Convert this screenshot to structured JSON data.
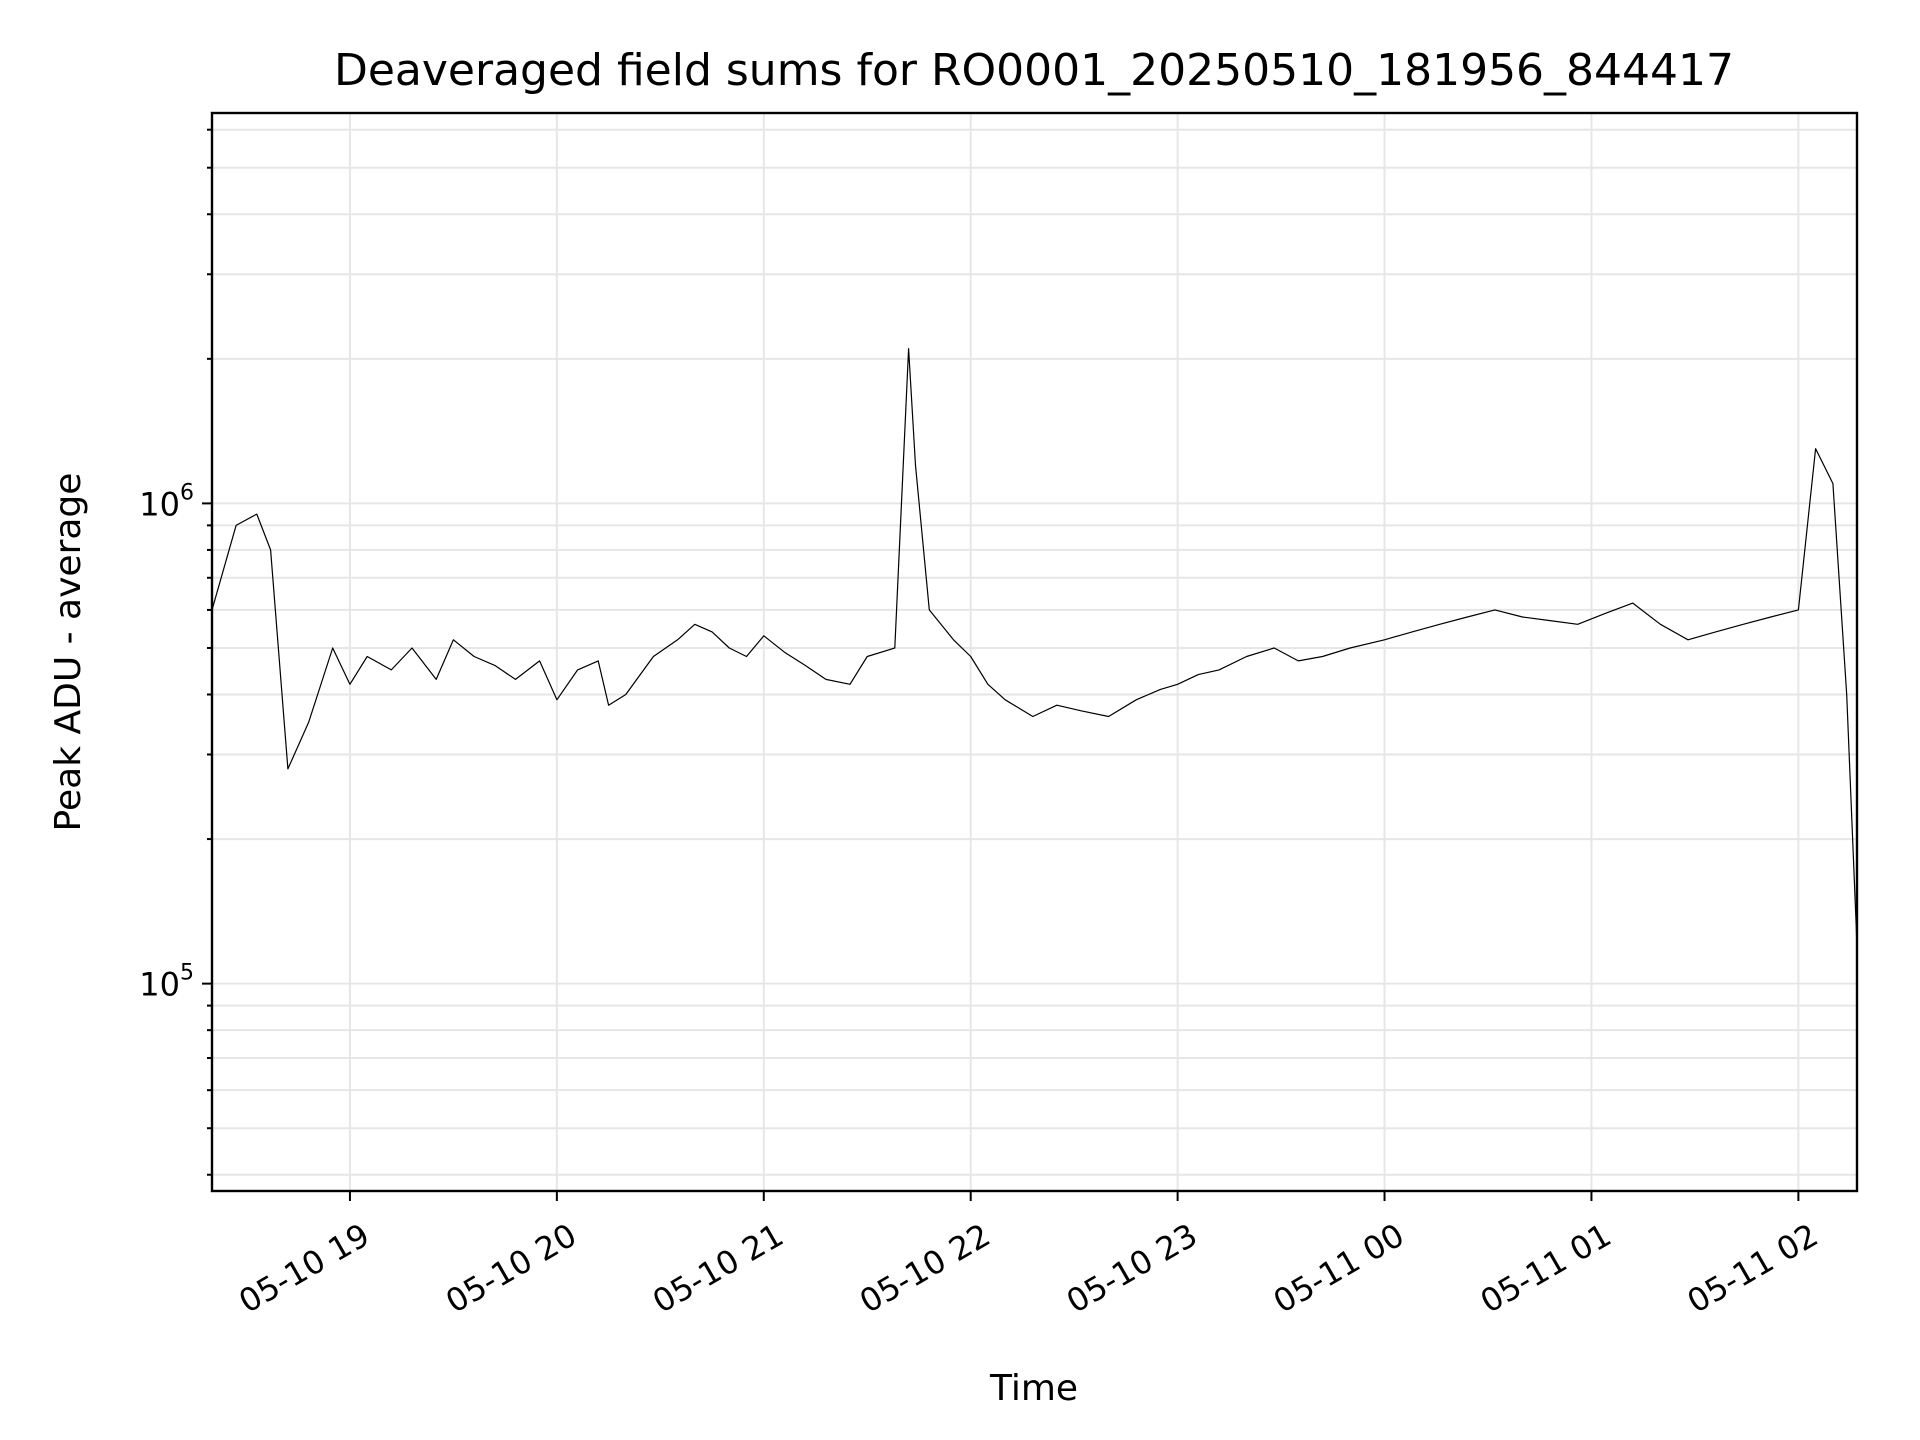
{
  "chart_data": {
    "type": "line",
    "title": "Deaveraged field sums for RO0001_20250510_181956_844417",
    "xlabel": "Time",
    "ylabel": "Peak ADU - average",
    "yscale": "log",
    "ylim": [
      37000,
      6500000
    ],
    "xlim": [
      "2025-05-10 18:20",
      "2025-05-11 02:17"
    ],
    "x_ticks": [
      {
        "time": "2025-05-10 19:00",
        "label": "05-10 19"
      },
      {
        "time": "2025-05-10 20:00",
        "label": "05-10 20"
      },
      {
        "time": "2025-05-10 21:00",
        "label": "05-10 21"
      },
      {
        "time": "2025-05-10 22:00",
        "label": "05-10 22"
      },
      {
        "time": "2025-05-10 23:00",
        "label": "05-10 23"
      },
      {
        "time": "2025-05-11 00:00",
        "label": "05-11 00"
      },
      {
        "time": "2025-05-11 01:00",
        "label": "05-11 01"
      },
      {
        "time": "2025-05-11 02:00",
        "label": "05-11 02"
      }
    ],
    "y_ticks": [
      {
        "value": 100000,
        "base": "10",
        "exp": "5"
      },
      {
        "value": 1000000,
        "base": "10",
        "exp": "6"
      }
    ],
    "grid": true,
    "legend": "none",
    "series": [
      {
        "color": "#000000",
        "x": [
          "2025-05-10 18:20",
          "2025-05-10 18:27",
          "2025-05-10 18:33",
          "2025-05-10 18:37",
          "2025-05-10 18:42",
          "2025-05-10 18:48",
          "2025-05-10 18:55",
          "2025-05-10 19:00",
          "2025-05-10 19:05",
          "2025-05-10 19:12",
          "2025-05-10 19:18",
          "2025-05-10 19:25",
          "2025-05-10 19:30",
          "2025-05-10 19:36",
          "2025-05-10 19:42",
          "2025-05-10 19:48",
          "2025-05-10 19:55",
          "2025-05-10 20:00",
          "2025-05-10 20:06",
          "2025-05-10 20:12",
          "2025-05-10 20:15",
          "2025-05-10 20:20",
          "2025-05-10 20:28",
          "2025-05-10 20:35",
          "2025-05-10 20:40",
          "2025-05-10 20:45",
          "2025-05-10 20:50",
          "2025-05-10 20:55",
          "2025-05-10 21:00",
          "2025-05-10 21:06",
          "2025-05-10 21:12",
          "2025-05-10 21:18",
          "2025-05-10 21:25",
          "2025-05-10 21:30",
          "2025-05-10 21:38",
          "2025-05-10 21:42",
          "2025-05-10 21:44",
          "2025-05-10 21:48",
          "2025-05-10 21:55",
          "2025-05-10 22:00",
          "2025-05-10 22:05",
          "2025-05-10 22:10",
          "2025-05-10 22:18",
          "2025-05-10 22:25",
          "2025-05-10 22:32",
          "2025-05-10 22:40",
          "2025-05-10 22:48",
          "2025-05-10 22:55",
          "2025-05-10 23:00",
          "2025-05-10 23:06",
          "2025-05-10 23:12",
          "2025-05-10 23:20",
          "2025-05-10 23:28",
          "2025-05-10 23:35",
          "2025-05-10 23:42",
          "2025-05-10 23:50",
          "2025-05-11 00:00",
          "2025-05-11 00:08",
          "2025-05-11 00:16",
          "2025-05-11 00:24",
          "2025-05-11 00:32",
          "2025-05-11 00:40",
          "2025-05-11 00:48",
          "2025-05-11 00:56",
          "2025-05-11 01:04",
          "2025-05-11 01:12",
          "2025-05-11 01:20",
          "2025-05-11 01:28",
          "2025-05-11 01:36",
          "2025-05-11 01:44",
          "2025-05-11 01:52",
          "2025-05-11 02:00",
          "2025-05-11 02:05",
          "2025-05-11 02:10",
          "2025-05-11 02:14",
          "2025-05-11 02:17"
        ],
        "values": [
          600000,
          900000,
          950000,
          800000,
          280000,
          350000,
          500000,
          420000,
          480000,
          450000,
          500000,
          430000,
          520000,
          480000,
          460000,
          430000,
          470000,
          390000,
          450000,
          470000,
          380000,
          400000,
          480000,
          520000,
          560000,
          540000,
          500000,
          480000,
          530000,
          490000,
          460000,
          430000,
          420000,
          480000,
          500000,
          2100000,
          1200000,
          600000,
          520000,
          480000,
          420000,
          390000,
          360000,
          380000,
          370000,
          360000,
          390000,
          410000,
          420000,
          440000,
          450000,
          480000,
          500000,
          470000,
          480000,
          500000,
          520000,
          540000,
          560000,
          580000,
          600000,
          580000,
          570000,
          560000,
          590000,
          620000,
          560000,
          520000,
          540000,
          560000,
          580000,
          600000,
          1300000,
          1100000,
          400000,
          120000
        ]
      }
    ]
  }
}
